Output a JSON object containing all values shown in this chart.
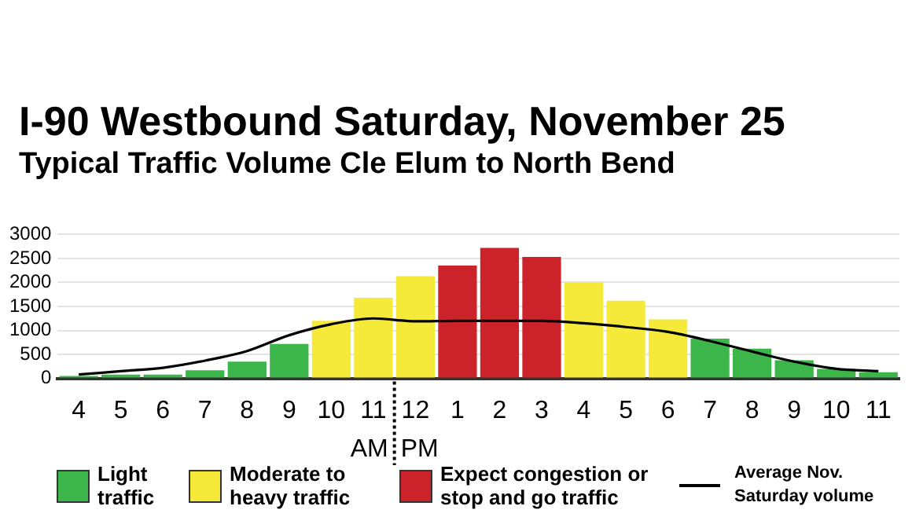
{
  "chart_data": {
    "type": "bar",
    "title": "I-90 Westbound Saturday, November 25",
    "subtitle": "Typical Traffic Volume Cle Elum to North Bend",
    "categories": [
      "4",
      "5",
      "6",
      "7",
      "8",
      "9",
      "10",
      "11",
      "12",
      "1",
      "2",
      "3",
      "4",
      "5",
      "6",
      "7",
      "8",
      "9",
      "10",
      "11"
    ],
    "stacked": true,
    "series": [
      {
        "name": "Light traffic",
        "color": "#3cb54a",
        "values": [
          50,
          80,
          80,
          170,
          350,
          720,
          null,
          null,
          null,
          null,
          null,
          null,
          null,
          null,
          null,
          830,
          620,
          380,
          200,
          130
        ]
      },
      {
        "name": "Moderate to heavy traffic",
        "color": "#f5ea3a",
        "values": [
          null,
          null,
          null,
          null,
          null,
          null,
          1200,
          1680,
          2130,
          null,
          null,
          null,
          2000,
          1620,
          1230,
          null,
          null,
          null,
          null,
          null
        ]
      },
      {
        "name": "Expect congestion or stop and go traffic",
        "color": "#cc2229",
        "values": [
          null,
          null,
          null,
          null,
          null,
          null,
          null,
          null,
          null,
          2350,
          2720,
          2530,
          null,
          null,
          null,
          null,
          null,
          null,
          null,
          null
        ]
      },
      {
        "name": "Average Nov. Saturday volume",
        "type": "line",
        "color": "#000000",
        "values": [
          80,
          150,
          220,
          370,
          570,
          900,
          1130,
          1250,
          1190,
          1200,
          1200,
          1200,
          1150,
          1070,
          970,
          780,
          560,
          350,
          200,
          150
        ]
      }
    ],
    "ylim": [
      0,
      3000
    ],
    "yticks": [
      0,
      500,
      1000,
      1500,
      2000,
      2500,
      3000
    ],
    "grid": "y",
    "legend": "bottom",
    "marker": "none",
    "annotations": [
      "AM",
      "PM"
    ]
  }
}
